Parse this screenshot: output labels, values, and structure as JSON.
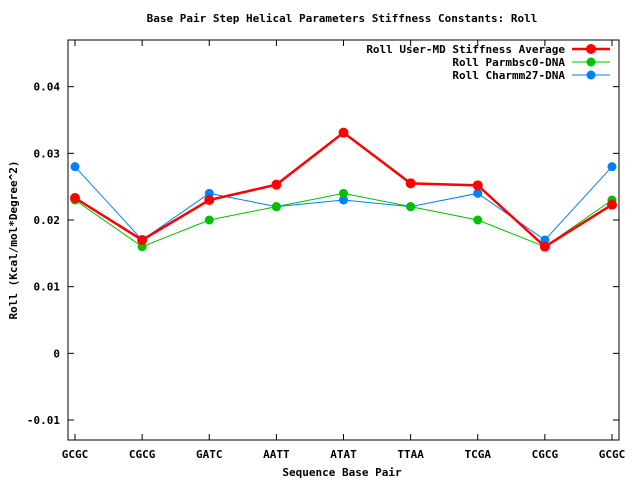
{
  "chart_data": {
    "type": "line",
    "title": "Base Pair Step Helical Parameters Stiffness Constants: Roll",
    "xlabel": "Sequence Base Pair",
    "ylabel": "Roll (Kcal/mol*Degree^2)",
    "categories": [
      "GCGC",
      "CGCG",
      "GATC",
      "AATT",
      "ATAT",
      "TTAA",
      "TCGA",
      "CGCG",
      "GCGC"
    ],
    "ylim": [
      -0.013,
      0.047
    ],
    "yticks": [
      -0.01,
      0,
      0.01,
      0.02,
      0.03,
      0.04
    ],
    "ytick_labels": [
      "-0.01",
      "0",
      "0.01",
      "0.02",
      "0.03",
      "0.04"
    ],
    "grid": false,
    "legend_position": "top-right",
    "series": [
      {
        "name": "Roll User-MD Stiffness Average",
        "color": "#ff0000",
        "values": [
          0.0233,
          0.017,
          0.023,
          0.0253,
          0.0331,
          0.0255,
          0.0252,
          0.016,
          0.0223
        ]
      },
      {
        "name": "Roll Parmbsc0-DNA",
        "color": "#00c000",
        "values": [
          0.023,
          0.016,
          0.02,
          0.022,
          0.024,
          0.022,
          0.02,
          0.016,
          0.023
        ]
      },
      {
        "name": "Roll Charmm27-DNA",
        "color": "#0080ff",
        "values": [
          0.028,
          0.017,
          0.024,
          0.022,
          0.023,
          0.022,
          0.024,
          0.017,
          0.028
        ]
      }
    ]
  }
}
